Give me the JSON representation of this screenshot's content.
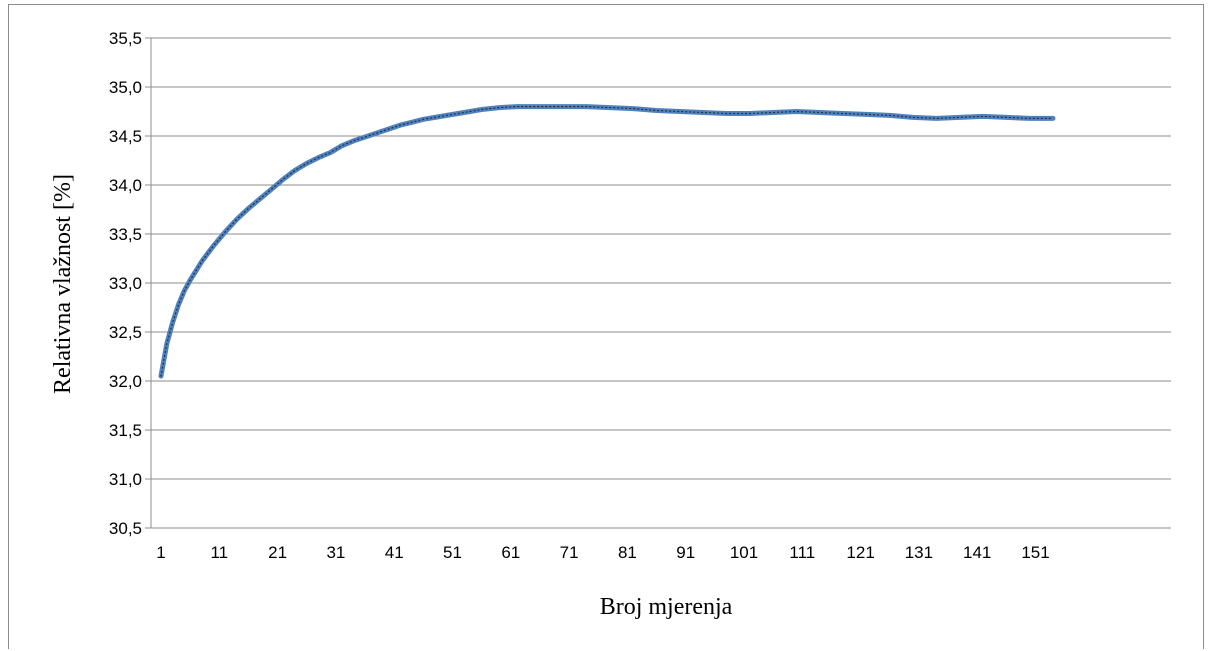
{
  "chart_data": {
    "type": "line",
    "title": "",
    "xlabel": "Broj mjerenja",
    "ylabel": "Relativna  vlažnost [%]",
    "xlim": [
      1,
      154
    ],
    "ylim": [
      30.5,
      35.5
    ],
    "x_ticks": [
      1,
      11,
      21,
      31,
      41,
      51,
      61,
      71,
      81,
      91,
      101,
      111,
      121,
      131,
      141,
      151
    ],
    "x_tick_labels": [
      "1",
      "11",
      "21",
      "31",
      "41",
      "51",
      "61",
      "71",
      "81",
      "91",
      "101",
      "111",
      "121",
      "131",
      "141",
      "151"
    ],
    "y_ticks": [
      30.5,
      31.0,
      31.5,
      32.0,
      32.5,
      33.0,
      33.5,
      34.0,
      34.5,
      35.0,
      35.5
    ],
    "y_tick_labels": [
      "30,5",
      "31,0",
      "31,5",
      "32,0",
      "32,5",
      "33,0",
      "33,5",
      "34,0",
      "34,5",
      "35,0",
      "35,5"
    ],
    "grid": true,
    "legend": "none",
    "series_color": "#4f81bd",
    "series": [
      {
        "x": [
          1,
          2,
          3,
          4,
          5,
          6,
          8,
          10,
          12,
          14,
          16,
          18,
          20,
          22,
          24,
          26,
          28,
          30,
          32,
          34,
          36,
          38,
          40,
          42,
          44,
          46,
          48,
          50,
          53,
          56,
          59,
          62,
          66,
          70,
          74,
          78,
          82,
          86,
          90,
          94,
          98,
          102,
          106,
          110,
          114,
          118,
          122,
          126,
          130,
          134,
          138,
          142,
          146,
          150,
          154
        ],
        "y": [
          32.05,
          32.38,
          32.6,
          32.78,
          32.92,
          33.03,
          33.22,
          33.38,
          33.52,
          33.65,
          33.76,
          33.86,
          33.96,
          34.06,
          34.15,
          34.22,
          34.28,
          34.33,
          34.4,
          34.45,
          34.49,
          34.53,
          34.57,
          34.61,
          34.64,
          34.67,
          34.69,
          34.71,
          34.74,
          34.77,
          34.79,
          34.8,
          34.8,
          34.8,
          34.8,
          34.79,
          34.78,
          34.76,
          34.75,
          34.74,
          34.73,
          34.73,
          34.74,
          34.75,
          34.74,
          34.73,
          34.72,
          34.71,
          34.69,
          34.68,
          34.69,
          34.7,
          34.69,
          34.68,
          34.68
        ]
      }
    ]
  }
}
